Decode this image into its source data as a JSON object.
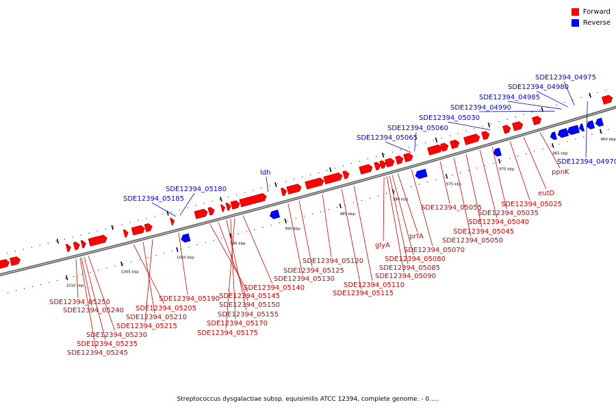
{
  "legend": {
    "forward_label": "Forward",
    "reverse_label": "Reverse",
    "forward_color": "#ff0000",
    "reverse_color": "#0000ff"
  },
  "colors": {
    "backbone": "#8c8c8c",
    "forward_text": "#cc0000",
    "reverse_text": "#0000cc"
  },
  "caption": "Streptococcus dysgalactiae subsp. equisimilis ATCC 12394, complete genome. - 0.....",
  "ticks": [
    "960 kbp",
    "965 kbp",
    "970 kbp",
    "975 kbp",
    "980 kbp",
    "985 kbp",
    "990 kbp",
    "995 kbp",
    "1000 kbp",
    "1005 kbp",
    "1010 kbp"
  ],
  "forward_labels": [
    "SDE12394_05250",
    "SDE12394_05240",
    "SDE12394_05230",
    "SDE12394_05235",
    "SDE12394_05245",
    "SDE12394_05205",
    "SDE12394_05210",
    "SDE12394_05215",
    "SDE12394_05190",
    "SDE12394_05145",
    "SDE12394_05150",
    "SDE12394_05155",
    "SDE12394_05170",
    "SDE12394_05175",
    "SDE12394_05140",
    "SDE12394_05130",
    "SDE12394_05125",
    "SDE12394_05120",
    "SDE12394_05110",
    "SDE12394_05115",
    "glyA",
    "SDE12394_05080",
    "SDE12394_05085",
    "SDE12394_05090",
    "prfA",
    "SDE12394_05070",
    "SDE12394_05055",
    "SDE12394_05045",
    "SDE12394_05050",
    "SDE12394_05040",
    "SDE12394_05035",
    "SDE12394_05025",
    "eutD",
    "ppnK"
  ],
  "reverse_labels": [
    "SDE12394_04975",
    "SDE12394_04980",
    "SDE12394_04985",
    "SDE12394_04990",
    "SDE12394_05030",
    "SDE12394_05060",
    "SDE12394_05065",
    "ldh",
    "SDE12394_05180",
    "SDE12394_05185",
    "SDE12394_04970"
  ]
}
